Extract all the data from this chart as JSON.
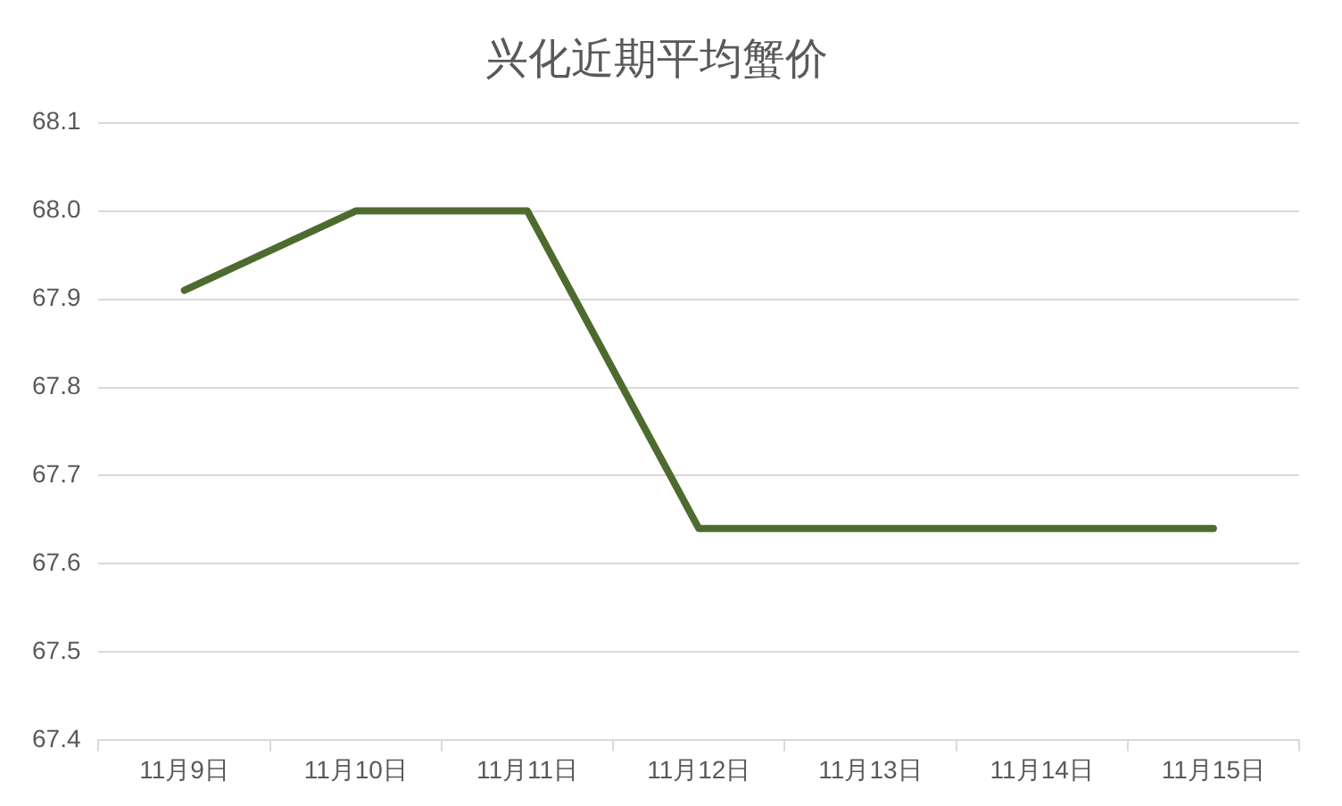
{
  "chart_data": {
    "type": "line",
    "title": "兴化近期平均蟹价",
    "categories": [
      "11月9日",
      "11月10日",
      "11月11日",
      "11月12日",
      "11月13日",
      "11月14日",
      "11月15日"
    ],
    "series": [
      {
        "color": "#4e6b2f",
        "values": [
          67.91,
          68.0,
          68.0,
          67.64,
          67.64,
          67.64,
          67.64
        ]
      }
    ],
    "ylim": [
      67.4,
      68.1
    ],
    "yticks": [
      67.4,
      67.5,
      67.6,
      67.7,
      67.8,
      67.9,
      {
        "value": 68,
        "label": "68.0"
      },
      68.1
    ],
    "grid": "y",
    "legend": false,
    "marker": "none",
    "line_style": "solid"
  }
}
